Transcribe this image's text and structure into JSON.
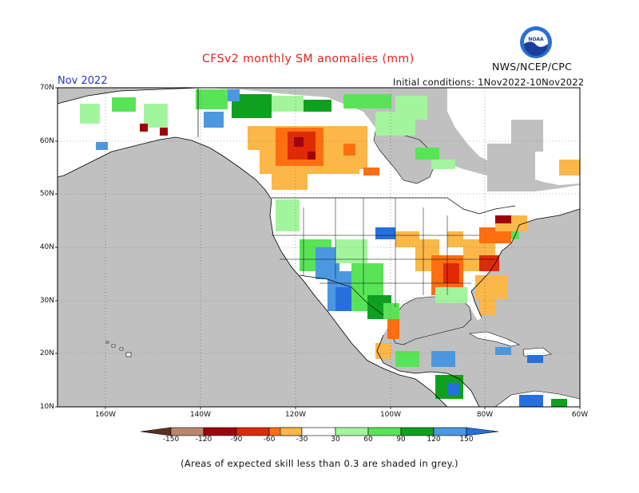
{
  "title": "CFSv2 monthly SM anomalies (mm)",
  "month": "Nov 2022",
  "init": "Initial conditions: 1Nov2022-10Nov2022",
  "agency": "NWS/NCEP/CPC",
  "logo_text": "NOAA",
  "footnote": "(Areas of expected skill less than 0.3 are shaded in grey.)",
  "lat_labels": [
    "70N",
    "60N",
    "50N",
    "40N",
    "30N",
    "20N",
    "10N"
  ],
  "lon_labels": [
    "160W",
    "140W",
    "120W",
    "100W",
    "80W",
    "60W"
  ],
  "colorbar": {
    "labels": [
      "-150",
      "-120",
      "-90",
      "-60",
      "-30",
      "30",
      "60",
      "90",
      "120",
      "150"
    ],
    "colors": [
      "#5a3120",
      "#b9856d",
      "#a0000c",
      "#e02a06",
      "#ff6e10",
      "#fbb748",
      "#ffffff",
      "#a3f59d",
      "#58e456",
      "#0fa020",
      "#4b98e0",
      "#2570dc"
    ]
  },
  "colors": {
    "land_skill_mask": "#c0c0c0",
    "ocean": "#c0c0c0",
    "valid_land": "#ffffff"
  }
}
